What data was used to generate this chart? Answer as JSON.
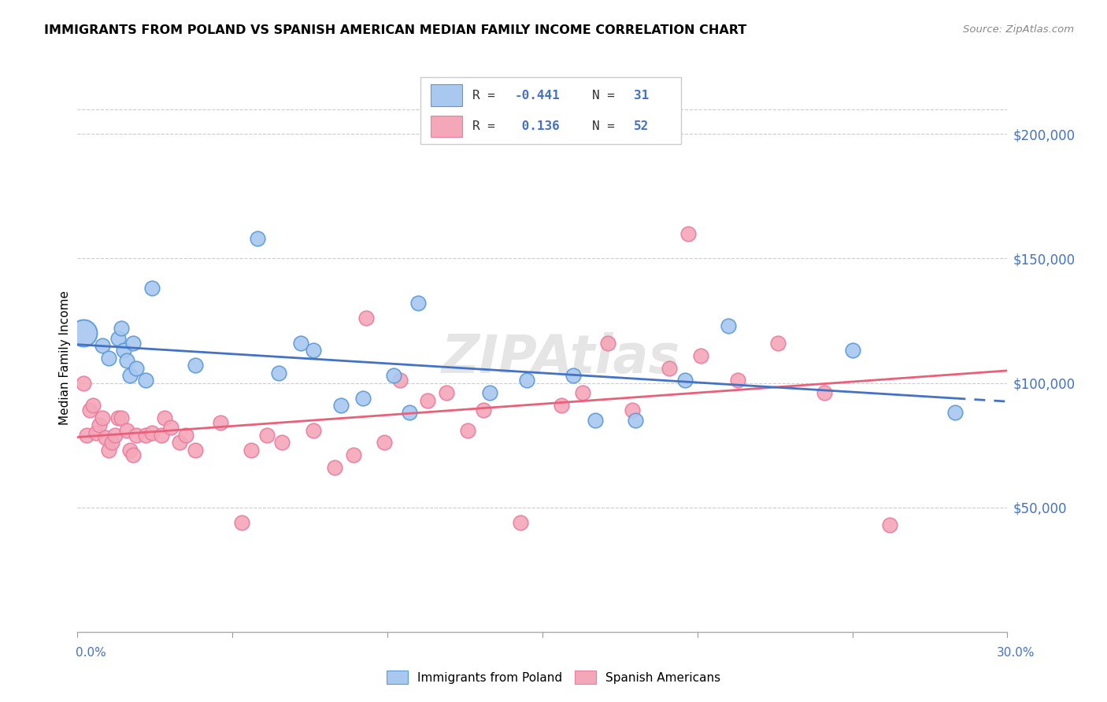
{
  "title": "IMMIGRANTS FROM POLAND VS SPANISH AMERICAN MEDIAN FAMILY INCOME CORRELATION CHART",
  "source": "Source: ZipAtlas.com",
  "ylabel": "Median Family Income",
  "y_ticks": [
    0,
    50000,
    100000,
    150000,
    200000
  ],
  "y_tick_labels": [
    "",
    "$50,000",
    "$100,000",
    "$150,000",
    "$200,000"
  ],
  "x_min": 0.0,
  "x_max": 0.3,
  "y_min": 0,
  "y_max": 220000,
  "color_blue": "#A8C8F0",
  "color_pink": "#F4A7B9",
  "color_blue_edge": "#5B9BD5",
  "color_pink_edge": "#E87FA0",
  "color_blue_line": "#4472C4",
  "color_pink_line": "#E8607A",
  "watermark": "ZIPAtlas",
  "legend_text_color": "#4472C4",
  "poland_x": [
    0.002,
    0.008,
    0.01,
    0.013,
    0.014,
    0.015,
    0.016,
    0.017,
    0.018,
    0.019,
    0.022,
    0.024,
    0.038,
    0.058,
    0.065,
    0.072,
    0.076,
    0.085,
    0.092,
    0.102,
    0.107,
    0.11,
    0.133,
    0.145,
    0.16,
    0.167,
    0.18,
    0.196,
    0.21,
    0.25,
    0.283
  ],
  "poland_y": [
    120000,
    115000,
    110000,
    118000,
    122000,
    113000,
    109000,
    103000,
    116000,
    106000,
    101000,
    138000,
    107000,
    158000,
    104000,
    116000,
    113000,
    91000,
    94000,
    103000,
    88000,
    132000,
    96000,
    101000,
    103000,
    85000,
    85000,
    101000,
    123000,
    113000,
    88000
  ],
  "spanish_x": [
    0.002,
    0.003,
    0.004,
    0.005,
    0.006,
    0.007,
    0.008,
    0.009,
    0.01,
    0.011,
    0.012,
    0.013,
    0.014,
    0.016,
    0.017,
    0.018,
    0.019,
    0.022,
    0.024,
    0.027,
    0.028,
    0.03,
    0.033,
    0.035,
    0.038,
    0.046,
    0.053,
    0.056,
    0.061,
    0.066,
    0.076,
    0.083,
    0.089,
    0.093,
    0.099,
    0.104,
    0.113,
    0.119,
    0.126,
    0.131,
    0.143,
    0.156,
    0.163,
    0.171,
    0.179,
    0.191,
    0.201,
    0.213,
    0.226,
    0.241,
    0.197,
    0.262
  ],
  "spanish_y": [
    100000,
    79000,
    89000,
    91000,
    80000,
    83000,
    86000,
    78000,
    73000,
    76000,
    79000,
    86000,
    86000,
    81000,
    73000,
    71000,
    79000,
    79000,
    80000,
    79000,
    86000,
    82000,
    76000,
    79000,
    73000,
    84000,
    44000,
    73000,
    79000,
    76000,
    81000,
    66000,
    71000,
    126000,
    76000,
    101000,
    93000,
    96000,
    81000,
    89000,
    44000,
    91000,
    96000,
    116000,
    89000,
    106000,
    111000,
    101000,
    116000,
    96000,
    160000,
    43000
  ],
  "poland_trend_x": [
    0.0,
    0.283
  ],
  "poland_trend_y_intercept": 121000,
  "poland_trend_slope": -110000,
  "spanish_trend_x": [
    0.0,
    0.3
  ],
  "spanish_trend_y_intercept": 80000,
  "spanish_trend_slope": 67000
}
